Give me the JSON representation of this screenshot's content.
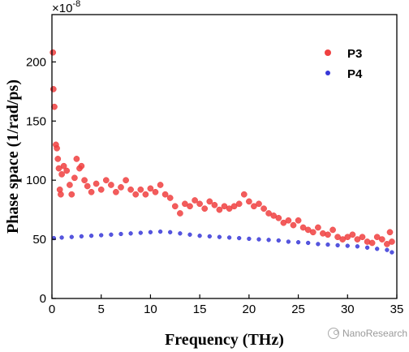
{
  "chart_data": {
    "type": "scatter",
    "xlabel": "Frequency (THz)",
    "ylabel": "Phase space (1/rad/ps)",
    "y_multiplier": "×10",
    "y_exponent": "-8",
    "xlim": [
      0,
      35
    ],
    "ylim": [
      0,
      240
    ],
    "x_ticks": [
      0,
      5,
      10,
      15,
      20,
      25,
      30,
      35
    ],
    "y_ticks": [
      0,
      50,
      100,
      150,
      200
    ],
    "grid": false,
    "legend_position": "top-right",
    "series": [
      {
        "name": "P3",
        "color": "#f04040",
        "points": [
          [
            0.1,
            208
          ],
          [
            0.15,
            177
          ],
          [
            0.25,
            162
          ],
          [
            0.4,
            130
          ],
          [
            0.5,
            127
          ],
          [
            0.6,
            118
          ],
          [
            0.7,
            110
          ],
          [
            0.8,
            92
          ],
          [
            0.9,
            88
          ],
          [
            1.0,
            105
          ],
          [
            1.2,
            112
          ],
          [
            1.5,
            108
          ],
          [
            1.8,
            96
          ],
          [
            2.0,
            88
          ],
          [
            2.3,
            102
          ],
          [
            2.5,
            118
          ],
          [
            2.8,
            110
          ],
          [
            3.0,
            112
          ],
          [
            3.3,
            100
          ],
          [
            3.6,
            95
          ],
          [
            4.0,
            90
          ],
          [
            4.5,
            97
          ],
          [
            5.0,
            92
          ],
          [
            5.5,
            100
          ],
          [
            6.0,
            96
          ],
          [
            6.5,
            90
          ],
          [
            7.0,
            94
          ],
          [
            7.5,
            100
          ],
          [
            8.0,
            92
          ],
          [
            8.5,
            88
          ],
          [
            9.0,
            92
          ],
          [
            9.5,
            88
          ],
          [
            10.0,
            93
          ],
          [
            10.5,
            90
          ],
          [
            11.0,
            96
          ],
          [
            11.5,
            88
          ],
          [
            12.0,
            85
          ],
          [
            12.5,
            78
          ],
          [
            13.0,
            72
          ],
          [
            13.5,
            80
          ],
          [
            14.0,
            78
          ],
          [
            14.5,
            83
          ],
          [
            15.0,
            80
          ],
          [
            15.5,
            76
          ],
          [
            16.0,
            82
          ],
          [
            16.5,
            79
          ],
          [
            17.0,
            75
          ],
          [
            17.5,
            78
          ],
          [
            18.0,
            76
          ],
          [
            18.5,
            78
          ],
          [
            19.0,
            80
          ],
          [
            19.5,
            88
          ],
          [
            20.0,
            82
          ],
          [
            20.5,
            78
          ],
          [
            21.0,
            80
          ],
          [
            21.5,
            76
          ],
          [
            22.0,
            72
          ],
          [
            22.5,
            70
          ],
          [
            23.0,
            68
          ],
          [
            23.5,
            64
          ],
          [
            24.0,
            66
          ],
          [
            24.5,
            62
          ],
          [
            25.0,
            66
          ],
          [
            25.5,
            60
          ],
          [
            26.0,
            58
          ],
          [
            26.5,
            56
          ],
          [
            27.0,
            60
          ],
          [
            27.5,
            55
          ],
          [
            28.0,
            54
          ],
          [
            28.5,
            58
          ],
          [
            29.0,
            52
          ],
          [
            29.5,
            50
          ],
          [
            30.0,
            52
          ],
          [
            30.5,
            54
          ],
          [
            31.0,
            50
          ],
          [
            31.5,
            52
          ],
          [
            32.0,
            48
          ],
          [
            32.5,
            47
          ],
          [
            33.0,
            52
          ],
          [
            33.5,
            50
          ],
          [
            34.0,
            46
          ],
          [
            34.3,
            56
          ],
          [
            34.5,
            48
          ]
        ]
      },
      {
        "name": "P4",
        "color": "#3838d8",
        "points": [
          [
            0.2,
            51
          ],
          [
            1.0,
            51.5
          ],
          [
            2.0,
            52
          ],
          [
            3.0,
            52.5
          ],
          [
            4.0,
            53
          ],
          [
            5.0,
            53.5
          ],
          [
            6.0,
            54
          ],
          [
            7.0,
            54.5
          ],
          [
            8.0,
            55
          ],
          [
            9.0,
            55.5
          ],
          [
            10.0,
            56
          ],
          [
            11.0,
            56.5
          ],
          [
            12.0,
            56
          ],
          [
            13.0,
            55
          ],
          [
            14.0,
            54
          ],
          [
            15.0,
            53
          ],
          [
            16.0,
            52.5
          ],
          [
            17.0,
            52
          ],
          [
            18.0,
            51.5
          ],
          [
            19.0,
            51
          ],
          [
            20.0,
            50.5
          ],
          [
            21.0,
            50
          ],
          [
            22.0,
            49.5
          ],
          [
            23.0,
            49
          ],
          [
            24.0,
            48
          ],
          [
            25.0,
            47.5
          ],
          [
            26.0,
            47
          ],
          [
            27.0,
            46
          ],
          [
            28.0,
            45.5
          ],
          [
            29.0,
            45
          ],
          [
            30.0,
            44.5
          ],
          [
            31.0,
            44
          ],
          [
            32.0,
            43
          ],
          [
            33.0,
            42
          ],
          [
            34.0,
            41
          ],
          [
            34.5,
            39
          ]
        ]
      }
    ]
  },
  "watermark": {
    "text": "NanoResearch"
  }
}
